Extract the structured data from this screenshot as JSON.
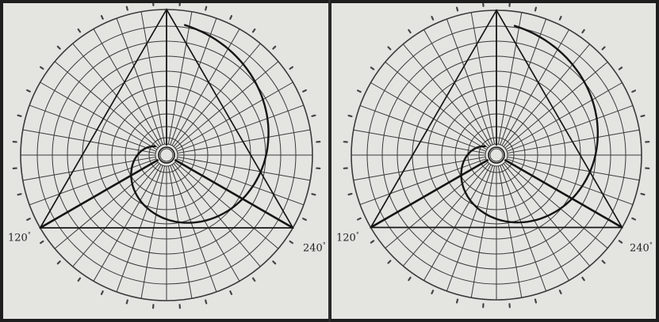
{
  "panels": [
    {
      "labels": {
        "left_angle": "120",
        "right_angle": "240",
        "degree_mark": "°"
      }
    },
    {
      "labels": {
        "left_angle": "120",
        "right_angle": "240",
        "degree_mark": "°"
      }
    }
  ],
  "colors": {
    "paper": "#e4e4e1",
    "grid": "#3a3a3a",
    "ink": "#151515",
    "frame": "#1e1e1e"
  }
}
